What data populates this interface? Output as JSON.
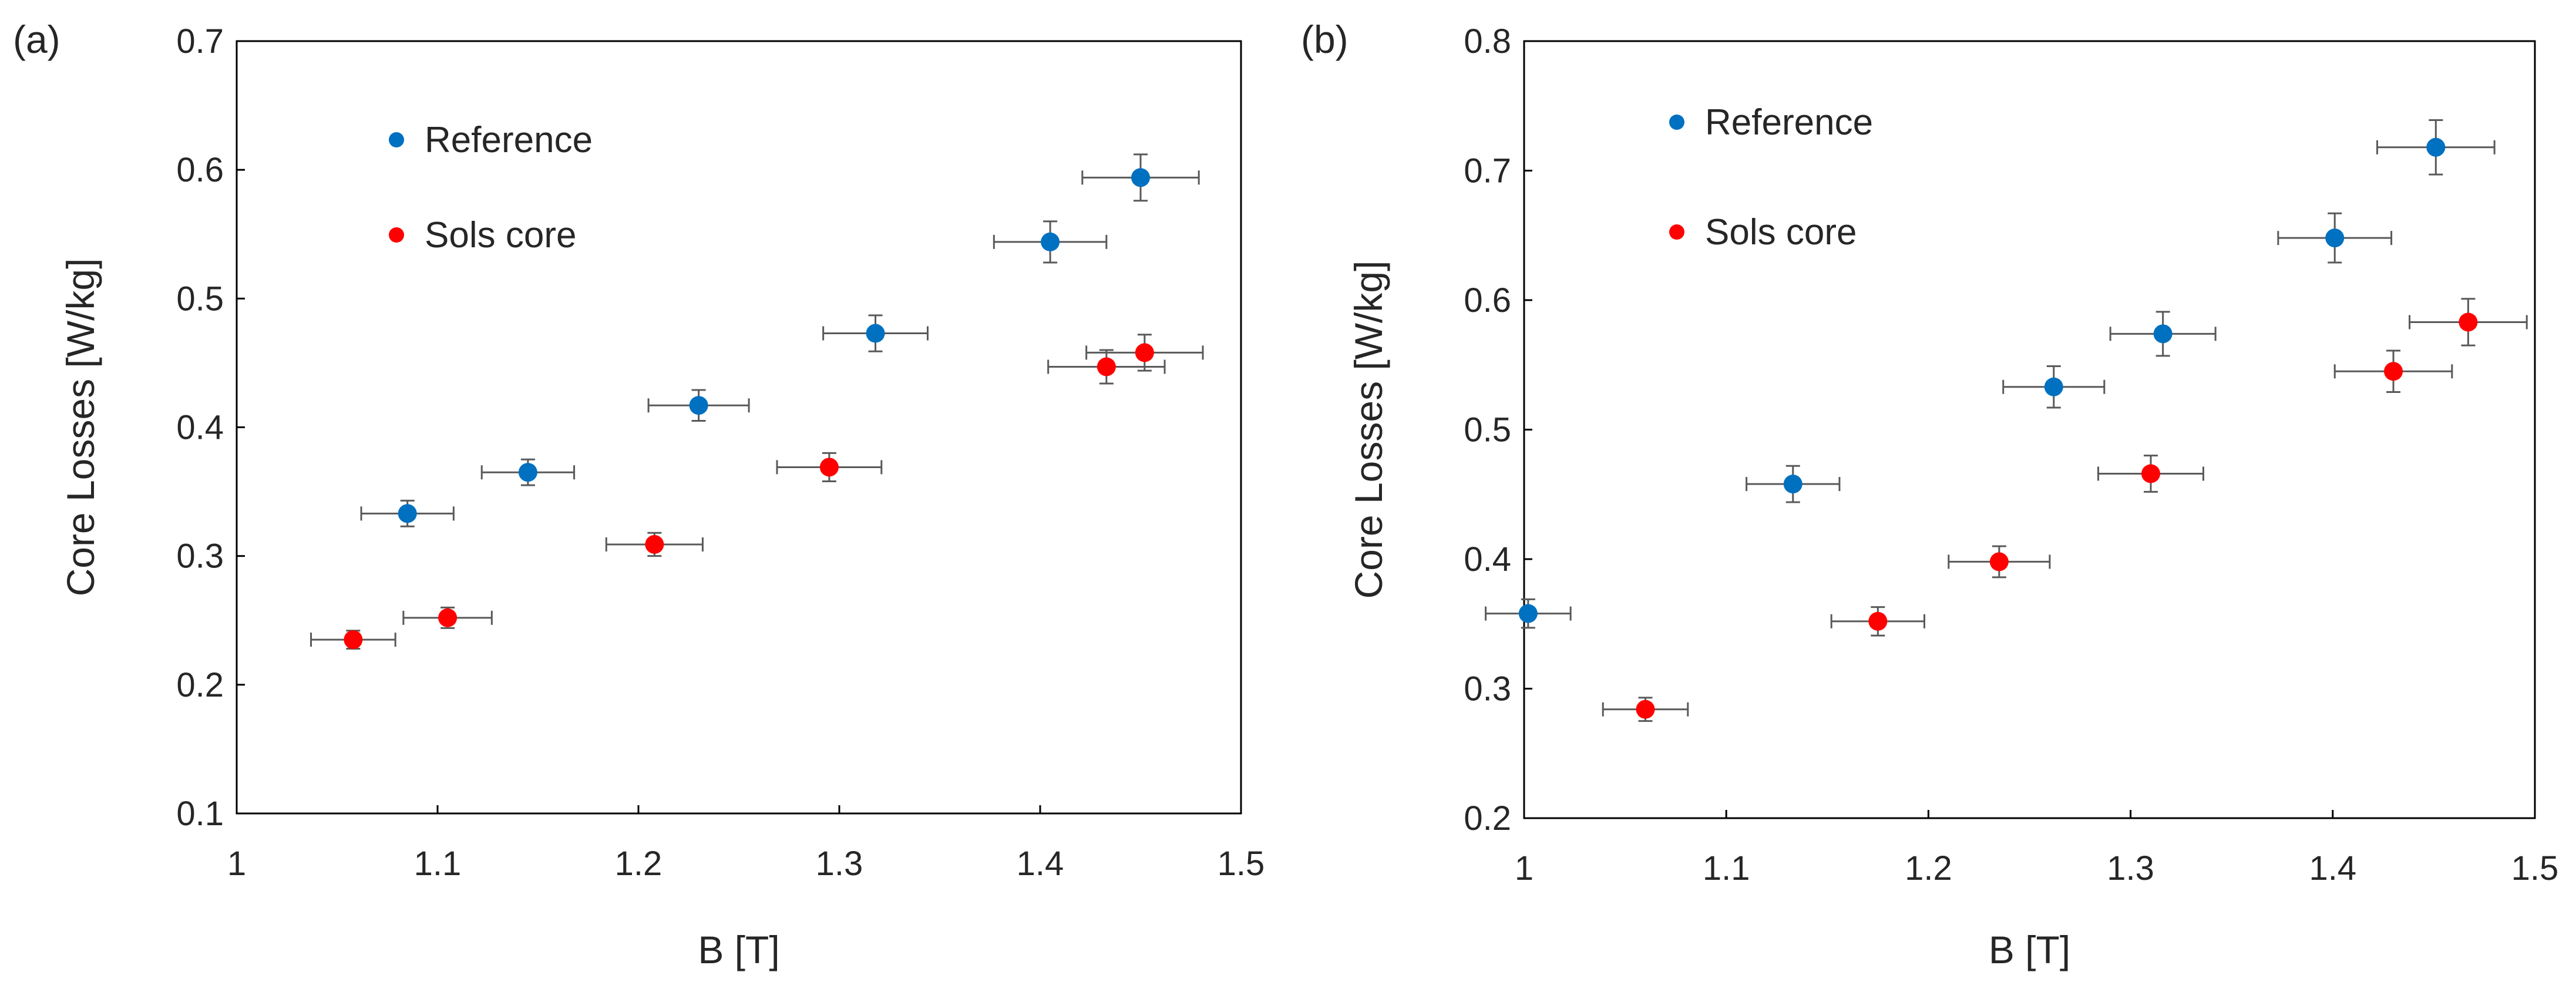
{
  "chart_data": [
    {
      "panel_label": "(a)",
      "type": "scatter",
      "xlabel": "B [T]",
      "ylabel": "Core Losses [W/kg]",
      "xlim": [
        1,
        1.5
      ],
      "ylim": [
        0.1,
        0.7
      ],
      "xticks": [
        "1",
        "1.1",
        "1.2",
        "1.3",
        "1.4",
        "1.5"
      ],
      "yticks": [
        "0.1",
        "0.2",
        "0.3",
        "0.4",
        "0.5",
        "0.6",
        "0.7"
      ],
      "grid": false,
      "legend_position": "top-left",
      "series": [
        {
          "name": "Reference",
          "color": "#0070C0",
          "points": [
            {
              "x": 1.085,
              "y": 0.333,
              "xerr": 0.023,
              "yerr": 0.01
            },
            {
              "x": 1.145,
              "y": 0.365,
              "xerr": 0.023,
              "yerr": 0.01
            },
            {
              "x": 1.23,
              "y": 0.417,
              "xerr": 0.025,
              "yerr": 0.012
            },
            {
              "x": 1.318,
              "y": 0.473,
              "xerr": 0.026,
              "yerr": 0.014
            },
            {
              "x": 1.405,
              "y": 0.544,
              "xerr": 0.028,
              "yerr": 0.016
            },
            {
              "x": 1.45,
              "y": 0.594,
              "xerr": 0.029,
              "yerr": 0.018
            }
          ]
        },
        {
          "name": "Sols core",
          "color": "#FF0000",
          "points": [
            {
              "x": 1.058,
              "y": 0.235,
              "xerr": 0.021,
              "yerr": 0.007
            },
            {
              "x": 1.105,
              "y": 0.252,
              "xerr": 0.022,
              "yerr": 0.008
            },
            {
              "x": 1.208,
              "y": 0.309,
              "xerr": 0.024,
              "yerr": 0.009
            },
            {
              "x": 1.295,
              "y": 0.369,
              "xerr": 0.026,
              "yerr": 0.011
            },
            {
              "x": 1.433,
              "y": 0.447,
              "xerr": 0.029,
              "yerr": 0.013
            },
            {
              "x": 1.452,
              "y": 0.458,
              "xerr": 0.029,
              "yerr": 0.014
            }
          ]
        }
      ]
    },
    {
      "panel_label": "(b)",
      "type": "scatter",
      "xlabel": "B [T]",
      "ylabel": "Core Losses [W/kg]",
      "xlim": [
        1,
        1.5
      ],
      "ylim": [
        0.2,
        0.8
      ],
      "xticks": [
        "1",
        "1.1",
        "1.2",
        "1.3",
        "1.4",
        "1.5"
      ],
      "yticks": [
        "0.2",
        "0.3",
        "0.4",
        "0.5",
        "0.6",
        "0.7",
        "0.8"
      ],
      "grid": false,
      "legend_position": "top-left",
      "series": [
        {
          "name": "Reference",
          "color": "#0070C0",
          "points": [
            {
              "x": 1.002,
              "y": 0.358,
              "xerr": 0.021,
              "yerr": 0.011
            },
            {
              "x": 1.133,
              "y": 0.458,
              "xerr": 0.023,
              "yerr": 0.014
            },
            {
              "x": 1.262,
              "y": 0.533,
              "xerr": 0.025,
              "yerr": 0.016
            },
            {
              "x": 1.316,
              "y": 0.574,
              "xerr": 0.026,
              "yerr": 0.017
            },
            {
              "x": 1.401,
              "y": 0.648,
              "xerr": 0.028,
              "yerr": 0.019
            },
            {
              "x": 1.451,
              "y": 0.718,
              "xerr": 0.029,
              "yerr": 0.021
            }
          ]
        },
        {
          "name": "Sols core",
          "color": "#FF0000",
          "points": [
            {
              "x": 1.06,
              "y": 0.284,
              "xerr": 0.021,
              "yerr": 0.009
            },
            {
              "x": 1.175,
              "y": 0.352,
              "xerr": 0.023,
              "yerr": 0.011
            },
            {
              "x": 1.235,
              "y": 0.398,
              "xerr": 0.025,
              "yerr": 0.012
            },
            {
              "x": 1.31,
              "y": 0.466,
              "xerr": 0.026,
              "yerr": 0.014
            },
            {
              "x": 1.43,
              "y": 0.545,
              "xerr": 0.029,
              "yerr": 0.016
            },
            {
              "x": 1.467,
              "y": 0.583,
              "xerr": 0.029,
              "yerr": 0.018
            }
          ]
        }
      ]
    }
  ]
}
